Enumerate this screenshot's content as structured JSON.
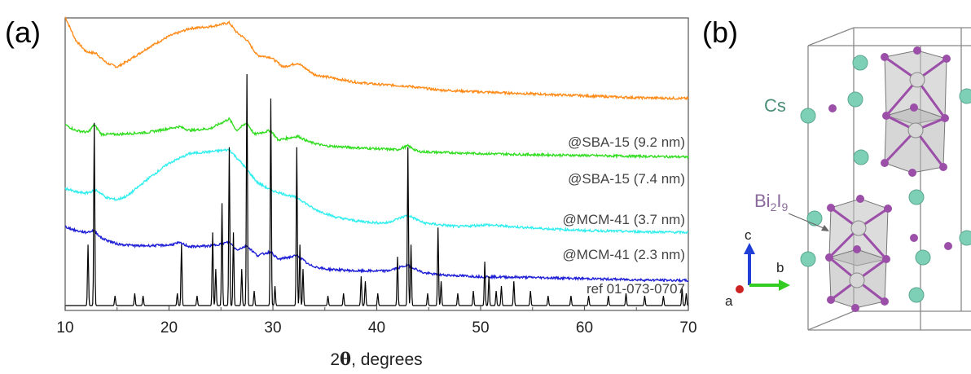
{
  "panel_a": {
    "label": "(a)"
  },
  "panel_b": {
    "label": "(b)",
    "atom_cs": "Cs",
    "atom_bi_main": "Bi",
    "atom_bi_sub1": "2",
    "atom_i_main": "I",
    "atom_i_sub2": "9",
    "axis_a": "a",
    "axis_b": "b",
    "axis_c": "c"
  },
  "colors": {
    "sba_92": "#ff8c1a",
    "sba_74": "#33dd22",
    "mcm_37": "#33eeee",
    "mcm_23": "#1f1fd6",
    "ref": "#000000",
    "cs_atom": "#7dcfb6",
    "i_atom": "#9b4fa8",
    "bi_atom": "#c8c8c8"
  },
  "chart_data": {
    "type": "line",
    "title": "",
    "xlabel_prefix": "2",
    "xlabel_theta": "θ",
    "xlabel_suffix": ", degrees",
    "ylabel": "",
    "xlim": [
      10,
      70
    ],
    "ylim": [
      0,
      10
    ],
    "xticks": [
      10,
      20,
      30,
      40,
      50,
      60,
      70
    ],
    "grid": false,
    "yticks_shown": false,
    "series": [
      {
        "name": "@SBA-15 (9.2 nm)",
        "color_key": "sba_92",
        "baseline_offset": 2.9,
        "broad_hump": {
          "center": 23,
          "width": 5.5,
          "height": 2.2
        },
        "edge_rise": {
          "start": 10,
          "height": 1.0,
          "decay": 1.3
        },
        "points": [
          [
            10,
            4.3
          ],
          [
            11,
            3.7
          ],
          [
            12,
            3.4
          ],
          [
            13,
            3.35
          ],
          [
            14,
            3.1
          ],
          [
            15,
            3.0
          ],
          [
            16,
            3.15
          ],
          [
            18,
            3.5
          ],
          [
            20,
            3.8
          ],
          [
            22,
            4.0
          ],
          [
            24,
            4.05
          ],
          [
            25.8,
            4.15
          ],
          [
            26.5,
            3.9
          ],
          [
            27.5,
            3.7
          ],
          [
            28.5,
            3.3
          ],
          [
            29.8,
            3.25
          ],
          [
            31,
            3.0
          ],
          [
            32.4,
            3.1
          ],
          [
            34,
            2.8
          ],
          [
            36,
            2.7
          ],
          [
            38,
            2.6
          ],
          [
            40,
            2.55
          ],
          [
            43,
            2.5
          ],
          [
            46,
            2.4
          ],
          [
            50,
            2.35
          ],
          [
            55,
            2.3
          ],
          [
            60,
            2.25
          ],
          [
            65,
            2.2
          ],
          [
            70,
            2.18
          ]
        ]
      },
      {
        "name": "@SBA-15 (7.4 nm)",
        "color_key": "sba_74",
        "points": [
          [
            10,
            2.7
          ],
          [
            11,
            2.55
          ],
          [
            12.2,
            2.5
          ],
          [
            12.8,
            2.7
          ],
          [
            13.5,
            2.45
          ],
          [
            15,
            2.45
          ],
          [
            18,
            2.5
          ],
          [
            21,
            2.65
          ],
          [
            22,
            2.55
          ],
          [
            24,
            2.6
          ],
          [
            25.8,
            2.85
          ],
          [
            26.5,
            2.55
          ],
          [
            27.5,
            2.75
          ],
          [
            28.2,
            2.45
          ],
          [
            29.8,
            2.55
          ],
          [
            30.5,
            2.3
          ],
          [
            32.4,
            2.4
          ],
          [
            33.5,
            2.25
          ],
          [
            35,
            2.15
          ],
          [
            38,
            2.1
          ],
          [
            42,
            2.05
          ],
          [
            43,
            2.15
          ],
          [
            44,
            2.0
          ],
          [
            46,
            1.98
          ],
          [
            50,
            1.95
          ],
          [
            55,
            1.92
          ],
          [
            60,
            1.9
          ],
          [
            65,
            1.88
          ],
          [
            70,
            1.86
          ]
        ]
      },
      {
        "name": "@MCM-41 (3.7 nm)",
        "color_key": "mcm_37",
        "points": [
          [
            10,
            1.85
          ],
          [
            11,
            1.75
          ],
          [
            12,
            1.72
          ],
          [
            13,
            1.8
          ],
          [
            14,
            1.6
          ],
          [
            15,
            1.55
          ],
          [
            16,
            1.65
          ],
          [
            18,
            2.1
          ],
          [
            20,
            2.5
          ],
          [
            22,
            2.75
          ],
          [
            24,
            2.8
          ],
          [
            25.8,
            2.85
          ],
          [
            27,
            2.5
          ],
          [
            28.5,
            2.0
          ],
          [
            29.8,
            1.8
          ],
          [
            31,
            1.7
          ],
          [
            32.4,
            1.6
          ],
          [
            34,
            1.3
          ],
          [
            36,
            1.1
          ],
          [
            38,
            1.0
          ],
          [
            40,
            0.95
          ],
          [
            41,
            0.95
          ],
          [
            43,
            1.15
          ],
          [
            44.5,
            0.95
          ],
          [
            46,
            0.9
          ],
          [
            48,
            0.85
          ],
          [
            50.5,
            0.9
          ],
          [
            53,
            0.85
          ],
          [
            56,
            0.8
          ],
          [
            60,
            0.75
          ],
          [
            65,
            0.72
          ],
          [
            70,
            0.7
          ]
        ]
      },
      {
        "name": "@MCM-41 (2.3 nm)",
        "color_key": "mcm_23",
        "points": [
          [
            10,
            1.6
          ],
          [
            11,
            1.5
          ],
          [
            12,
            1.45
          ],
          [
            12.8,
            1.5
          ],
          [
            13.5,
            1.3
          ],
          [
            15,
            1.15
          ],
          [
            17,
            1.1
          ],
          [
            20,
            1.12
          ],
          [
            21,
            1.18
          ],
          [
            22,
            1.08
          ],
          [
            24,
            1.1
          ],
          [
            25.8,
            1.2
          ],
          [
            26.5,
            1.0
          ],
          [
            27.5,
            1.1
          ],
          [
            28.5,
            0.85
          ],
          [
            29.8,
            0.95
          ],
          [
            30.5,
            0.75
          ],
          [
            32.4,
            0.85
          ],
          [
            33.5,
            0.6
          ],
          [
            35,
            0.5
          ],
          [
            38,
            0.45
          ],
          [
            41,
            0.45
          ],
          [
            43,
            0.6
          ],
          [
            44.5,
            0.4
          ],
          [
            46,
            0.35
          ],
          [
            50,
            0.3
          ],
          [
            55,
            0.28
          ],
          [
            60,
            0.25
          ],
          [
            65,
            0.22
          ],
          [
            70,
            0.2
          ]
        ]
      },
      {
        "name": "ref 01-073-0707",
        "color_key": "ref",
        "stick_pattern": true,
        "peaks": [
          [
            12.2,
            0.25
          ],
          [
            12.8,
            0.75
          ],
          [
            14.8,
            0.04
          ],
          [
            16.7,
            0.05
          ],
          [
            17.5,
            0.04
          ],
          [
            20.8,
            0.05
          ],
          [
            21.2,
            0.25
          ],
          [
            22.7,
            0.04
          ],
          [
            24.2,
            0.3
          ],
          [
            24.5,
            0.15
          ],
          [
            25.1,
            0.42
          ],
          [
            25.8,
            0.65
          ],
          [
            26.2,
            0.3
          ],
          [
            27.0,
            0.15
          ],
          [
            27.5,
            0.95
          ],
          [
            28.2,
            0.06
          ],
          [
            29.8,
            0.85
          ],
          [
            30.2,
            0.08
          ],
          [
            32.3,
            0.65
          ],
          [
            32.6,
            0.25
          ],
          [
            32.9,
            0.15
          ],
          [
            35.3,
            0.04
          ],
          [
            36.8,
            0.05
          ],
          [
            38.5,
            0.12
          ],
          [
            38.9,
            0.1
          ],
          [
            40.1,
            0.05
          ],
          [
            42.0,
            0.2
          ],
          [
            43.0,
            0.65
          ],
          [
            43.3,
            0.25
          ],
          [
            44.9,
            0.05
          ],
          [
            45.9,
            0.32
          ],
          [
            46.2,
            0.1
          ],
          [
            47.8,
            0.05
          ],
          [
            49.3,
            0.06
          ],
          [
            50.4,
            0.18
          ],
          [
            50.8,
            0.12
          ],
          [
            51.5,
            0.06
          ],
          [
            52.0,
            0.08
          ],
          [
            53.2,
            0.1
          ],
          [
            54.8,
            0.06
          ],
          [
            56.5,
            0.04
          ],
          [
            58.7,
            0.04
          ],
          [
            60.4,
            0.04
          ],
          [
            62.3,
            0.04
          ],
          [
            64.0,
            0.05
          ],
          [
            65.8,
            0.04
          ],
          [
            67.6,
            0.04
          ],
          [
            69.4,
            0.07
          ],
          [
            69.8,
            0.05
          ]
        ]
      }
    ],
    "legend": "inline labels at right end of each curve"
  }
}
